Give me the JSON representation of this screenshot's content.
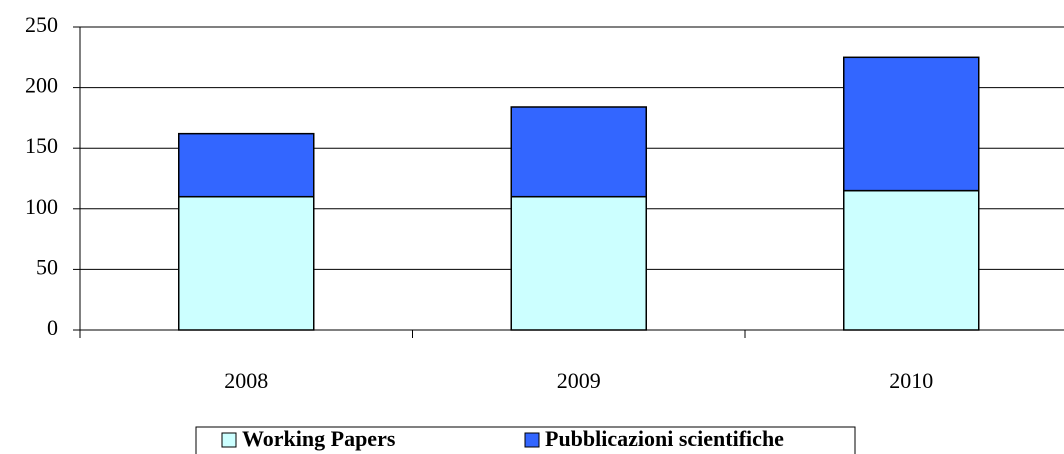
{
  "chart_data": {
    "type": "bar",
    "stacked": true,
    "categories": [
      "2008",
      "2009",
      "2010"
    ],
    "series": [
      {
        "name": "Working Papers",
        "color": "#ccffff",
        "values": [
          110,
          110,
          115
        ]
      },
      {
        "name": "Pubblicazioni scientifiche",
        "color": "#3366ff",
        "values": [
          52,
          74,
          110
        ]
      }
    ],
    "ylim": [
      0,
      250
    ],
    "yticks": [
      0,
      50,
      100,
      150,
      200,
      250
    ],
    "grid": true,
    "legend": "bottom"
  }
}
